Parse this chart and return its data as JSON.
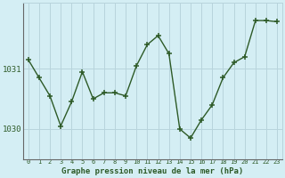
{
  "x": [
    0,
    1,
    2,
    3,
    4,
    5,
    6,
    7,
    8,
    9,
    10,
    11,
    12,
    13,
    14,
    15,
    16,
    17,
    18,
    19,
    20,
    21,
    22,
    23
  ],
  "y": [
    1031.15,
    1030.85,
    1030.55,
    1030.05,
    1030.45,
    1030.95,
    1030.5,
    1030.6,
    1030.6,
    1030.55,
    1031.05,
    1031.4,
    1031.55,
    1031.25,
    1030.0,
    1029.85,
    1030.15,
    1030.4,
    1030.85,
    1031.1,
    1031.2,
    1031.8,
    1031.8,
    1031.78
  ],
  "line_color": "#2d5a27",
  "marker_color": "#2d5a27",
  "bg_color": "#d4eef4",
  "grid_color": "#b8d4dc",
  "xlabel_text": "Graphe pression niveau de la mer (hPa)",
  "xtick_labels": [
    "0",
    "1",
    "2",
    "3",
    "4",
    "5",
    "6",
    "7",
    "8",
    "9",
    "10",
    "11",
    "12",
    "13",
    "14",
    "15",
    "16",
    "17",
    "18",
    "19",
    "20",
    "21",
    "22",
    "23"
  ],
  "ytick_vals": [
    1030.0,
    1031.0
  ],
  "ytick_labels": [
    "1030",
    "1031"
  ],
  "ylim_min": 1029.5,
  "ylim_max": 1032.1,
  "xlim_min": -0.5,
  "xlim_max": 23.5
}
